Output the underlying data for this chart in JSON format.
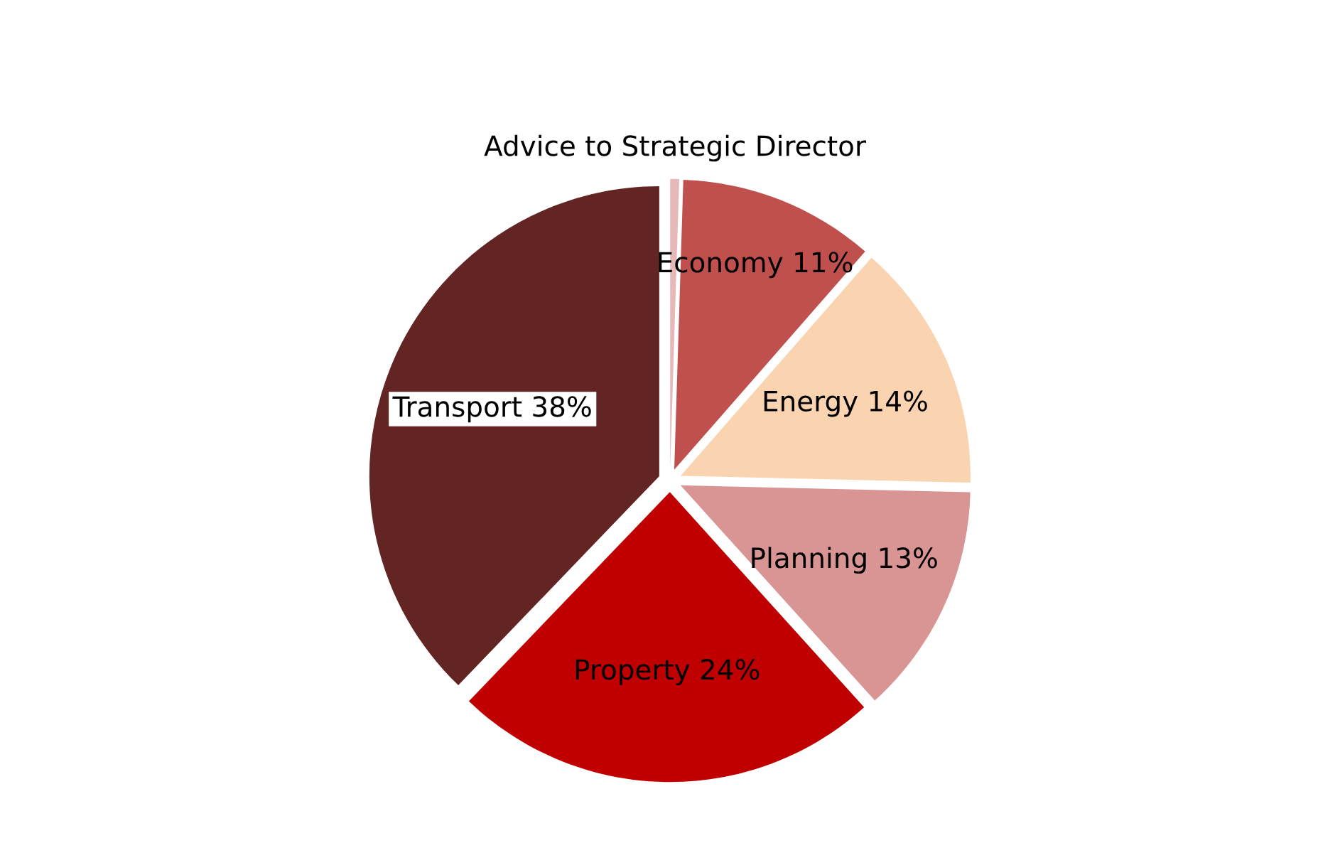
{
  "chart_data": {
    "type": "pie",
    "categories": [
      "Advice to Strategic Director",
      "Economy",
      "Energy",
      "Planning",
      "Property",
      "Transport"
    ],
    "values": [
      0.5,
      11,
      14,
      13,
      24,
      38
    ],
    "value_labels": [
      null,
      "11%",
      "14%",
      "13%",
      "24%",
      "38%"
    ],
    "colors": [
      "#e6b9b8",
      "#c0504d",
      "#fad3b0",
      "#d99594",
      "#c00000",
      "#632523"
    ]
  }
}
